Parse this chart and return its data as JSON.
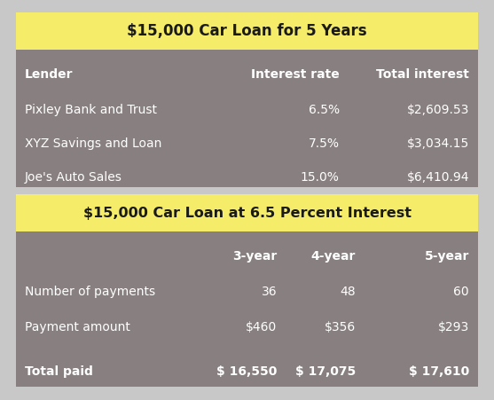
{
  "title1": "$15,000 Car Loan for 5 Years",
  "title2": "$15,000 Car Loan at 6.5 Percent Interest",
  "gray": "#888080",
  "yellow": "#f5ed6a",
  "white": "#ffffff",
  "dark": "#1a1a1a",
  "outer_bg": "#c8c8c8",
  "table1_headers": [
    "Lender",
    "Interest rate",
    "Total interest"
  ],
  "table1_rows": [
    [
      "Pixley Bank and Trust",
      "6.5%",
      "$2,609.53"
    ],
    [
      "XYZ Savings and Loan",
      "7.5%",
      "$3,034.15"
    ],
    [
      "Joe's Auto Sales",
      "15.0%",
      "$6,410.94"
    ]
  ],
  "table2_col_headers": [
    "",
    "3-year",
    "4-year",
    "5-year"
  ],
  "table2_rows": [
    [
      "Number of payments",
      "36",
      "48",
      "60"
    ],
    [
      "Payment amount",
      "$460",
      "$356",
      "$293"
    ],
    [
      "Total paid",
      "$ 16,550",
      "$ 17,075",
      "$ 17,610"
    ]
  ],
  "bold_rows2": [
    false,
    false,
    true
  ]
}
